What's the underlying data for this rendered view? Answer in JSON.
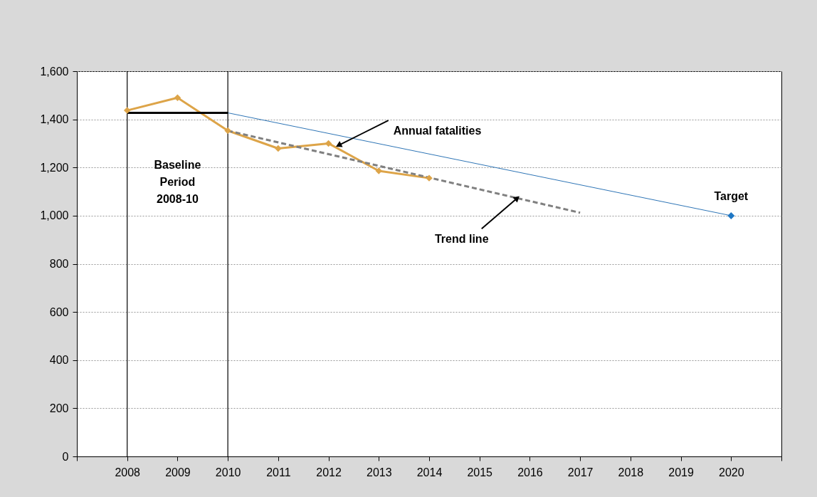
{
  "chart_data": {
    "type": "line",
    "xlim": [
      2007,
      2021
    ],
    "xticks": [
      {
        "value": 2007,
        "label": null
      },
      {
        "value": 2008,
        "label": "2008"
      },
      {
        "value": 2009,
        "label": "2009"
      },
      {
        "value": 2010,
        "label": "2010"
      },
      {
        "value": 2011,
        "label": "2011"
      },
      {
        "value": 2012,
        "label": "2012"
      },
      {
        "value": 2013,
        "label": "2013"
      },
      {
        "value": 2014,
        "label": "2014"
      },
      {
        "value": 2015,
        "label": "2015"
      },
      {
        "value": 2016,
        "label": "2016"
      },
      {
        "value": 2017,
        "label": "2017"
      },
      {
        "value": 2018,
        "label": "2018"
      },
      {
        "value": 2019,
        "label": "2019"
      },
      {
        "value": 2020,
        "label": "2020"
      },
      {
        "value": 2021,
        "label": null
      }
    ],
    "ylim": [
      0,
      1600
    ],
    "yticks": [
      0,
      200,
      400,
      600,
      800,
      {
        "value": 1000,
        "label": "1,000"
      },
      {
        "value": 1200,
        "label": "1,200"
      },
      {
        "value": 1400,
        "label": "1,400"
      },
      {
        "value": 1600,
        "label": "1,600"
      }
    ],
    "grid": "y",
    "series": [
      {
        "color": "#dda448",
        "marker": "diamond",
        "line_style": "solid",
        "x": [
          2008,
          2009,
          2010,
          2011,
          2012,
          2013,
          2014
        ],
        "values": [
          1437,
          1490,
          1353,
          1279,
          1300,
          1186,
          1156
        ]
      },
      {
        "color": "#000000",
        "marker": "none",
        "line_style": "solid",
        "x": [
          2008,
          2010
        ],
        "values": [
          1427,
          1427
        ]
      },
      {
        "color": "#2e75b6",
        "marker": "none",
        "line_style": "solid",
        "x": [
          2010,
          2020
        ],
        "values": [
          1427,
          1000
        ]
      },
      {
        "type": "scatter",
        "color": "#1f77c4",
        "marker": "diamond",
        "x": [
          2020
        ],
        "values": [
          1000
        ]
      },
      {
        "color": "#808080",
        "marker": "none",
        "line_style": "dashed",
        "x": [
          2010,
          2017
        ],
        "values": [
          1353,
          1012
        ]
      }
    ],
    "ref_lines": [
      {
        "axis": "x",
        "value": 2008,
        "color": "#000000"
      },
      {
        "axis": "x",
        "value": 2010,
        "color": "#000000"
      }
    ],
    "annotations": [
      {
        "text": "Annual fatalities",
        "x": 2012.2,
        "y": 1292
      },
      {
        "text": "Trend line",
        "x": 2015.75,
        "y": 1073
      },
      {
        "text": "Target",
        "x": 2020,
        "y": 1000
      },
      "Baseline Period 2008-10"
    ]
  }
}
